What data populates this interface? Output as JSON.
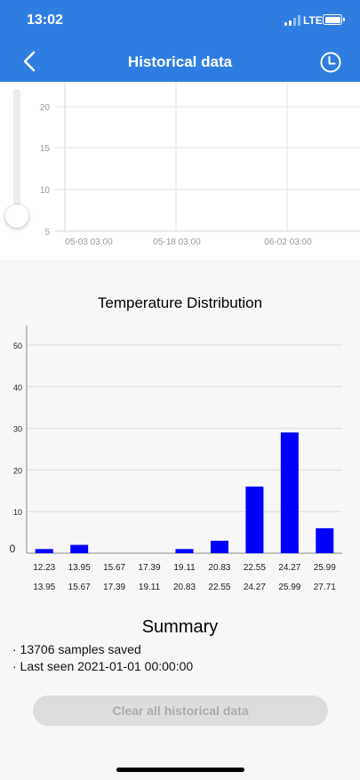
{
  "status_bar": {
    "time": "13:02",
    "network": "LTE"
  },
  "header": {
    "title": "Historical data",
    "back_icon": "chevron-left-icon",
    "history_icon": "clock-icon"
  },
  "colors": {
    "brand": "#2f7de1",
    "bar": "#0000ff",
    "disabled_button": "#dddddd"
  },
  "history_chart": {
    "y_ticks": [
      "20",
      "15",
      "10",
      "5"
    ],
    "x_ticks": [
      "05-03 03:00",
      "05-18 03:00",
      "06-02 03:00"
    ]
  },
  "chart_data": {
    "type": "bar",
    "title": "Temperature Distribution",
    "ylim": [
      0,
      50
    ],
    "y_ticks": [
      "50",
      "40",
      "30",
      "20",
      "10",
      "0"
    ],
    "categories_low": [
      "12.23",
      "13.95",
      "15.67",
      "17.39",
      "19.11",
      "20.83",
      "22.55",
      "24.27",
      "25.99"
    ],
    "categories_high": [
      "13.95",
      "15.67",
      "17.39",
      "19.11",
      "20.83",
      "22.55",
      "24.27",
      "25.99",
      "27.71"
    ],
    "values": [
      1,
      2,
      0,
      0,
      1,
      3,
      16,
      29,
      6
    ]
  },
  "summary": {
    "title": "Summary",
    "samples": "· 13706 samples saved",
    "last_seen": "· Last seen 2021-01-01 00:00:00"
  },
  "clear_button": {
    "label": "Clear all historical data"
  }
}
